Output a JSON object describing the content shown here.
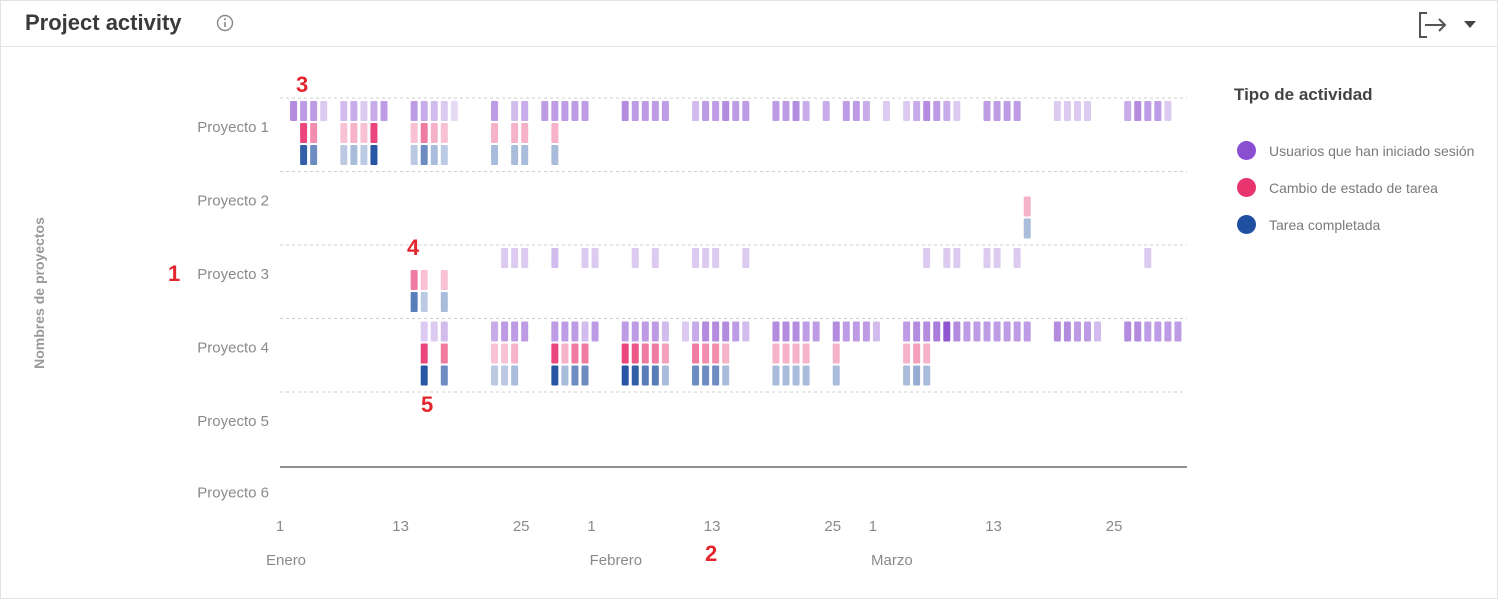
{
  "header": {
    "title": "Project activity"
  },
  "legend": {
    "title": "Tipo de actividad",
    "items": [
      {
        "label": "Usuarios que han iniciado sesión",
        "color": "#8a4fd0"
      },
      {
        "label": "Cambio de estado de tarea",
        "color": "#e8346f"
      },
      {
        "label": "Tarea completada",
        "color": "#1f4fa0"
      }
    ]
  },
  "markers": [
    "1",
    "2",
    "3",
    "4",
    "5"
  ],
  "chart_data": {
    "type": "heatmap",
    "ylabel": "Nombres de proyectos",
    "projects": [
      "Proyecto 1",
      "Proyecto 2",
      "Proyecto 3",
      "Proyecto 4",
      "Proyecto 5",
      "Proyecto 6"
    ],
    "x_ticks": [
      {
        "label": "1",
        "day": 1
      },
      {
        "label": "13",
        "day": 13
      },
      {
        "label": "25",
        "day": 25
      },
      {
        "label": "1",
        "day": 32
      },
      {
        "label": "13",
        "day": 44
      },
      {
        "label": "25",
        "day": 56
      },
      {
        "label": "1",
        "day": 60
      },
      {
        "label": "13",
        "day": 72
      },
      {
        "label": "25",
        "day": 84
      }
    ],
    "months": [
      {
        "label": "Enero",
        "day": 1
      },
      {
        "label": "Febrero",
        "day": 33
      },
      {
        "label": "Marzo",
        "day": 61
      }
    ],
    "day_range": [
      1,
      91
    ],
    "series": [
      {
        "name": "Usuarios que han iniciado sesión",
        "color": "#8a4fd0"
      },
      {
        "name": "Cambio de estado de tarea",
        "color": "#e8346f"
      },
      {
        "name": "Tarea completada",
        "color": "#1f4fa0"
      }
    ],
    "activity": [
      {
        "project": "Proyecto 1",
        "logins": {
          "2": 0.6,
          "3": 0.5,
          "4": 0.5,
          "5": 0.2,
          "7": 0.3,
          "8": 0.4,
          "9": 0.2,
          "10": 0.4,
          "11": 0.5,
          "14": 0.5,
          "15": 0.4,
          "16": 0.3,
          "17": 0.2,
          "18": 0.1,
          "22": 0.5,
          "24": 0.3,
          "25": 0.4,
          "27": 0.5,
          "28": 0.5,
          "29": 0.5,
          "30": 0.5,
          "31": 0.5,
          "35": 0.6,
          "36": 0.5,
          "37": 0.5,
          "38": 0.5,
          "39": 0.5,
          "42": 0.3,
          "43": 0.5,
          "44": 0.5,
          "45": 0.6,
          "46": 0.5,
          "47": 0.5,
          "50": 0.5,
          "51": 0.5,
          "52": 0.6,
          "53": 0.4,
          "55": 0.4,
          "57": 0.5,
          "58": 0.5,
          "59": 0.4,
          "61": 0.2,
          "63": 0.2,
          "64": 0.4,
          "65": 0.6,
          "66": 0.5,
          "67": 0.4,
          "68": 0.2,
          "71": 0.5,
          "72": 0.5,
          "73": 0.5,
          "74": 0.5,
          "78": 0.2,
          "79": 0.2,
          "80": 0.2,
          "81": 0.2,
          "85": 0.4,
          "86": 0.6,
          "87": 0.5,
          "88": 0.5,
          "89": 0.2
        },
        "status": {
          "3": 0.9,
          "4": 0.5,
          "7": 0.2,
          "8": 0.3,
          "9": 0.2,
          "10": 0.9,
          "14": 0.2,
          "15": 0.6,
          "16": 0.3,
          "17": 0.2,
          "22": 0.3,
          "24": 0.3,
          "25": 0.3,
          "28": 0.3
        },
        "completed": {
          "3": 0.9,
          "4": 0.6,
          "7": 0.2,
          "8": 0.3,
          "9": 0.2,
          "10": 0.95,
          "14": 0.2,
          "15": 0.6,
          "16": 0.3,
          "17": 0.2,
          "22": 0.3,
          "24": 0.3,
          "25": 0.3,
          "28": 0.3
        }
      },
      {
        "project": "Proyecto 2",
        "logins": {},
        "status": {
          "75": 0.3
        },
        "completed": {
          "75": 0.3
        }
      },
      {
        "project": "Proyecto 3",
        "logins": {
          "23": 0.2,
          "24": 0.2,
          "25": 0.2,
          "28": 0.3,
          "31": 0.2,
          "32": 0.2,
          "36": 0.2,
          "38": 0.2,
          "42": 0.2,
          "43": 0.2,
          "44": 0.2,
          "47": 0.2,
          "65": 0.2,
          "67": 0.2,
          "68": 0.2,
          "71": 0.2,
          "72": 0.2,
          "74": 0.2,
          "87": 0.2
        },
        "status": {
          "14": 0.6,
          "15": 0.2,
          "17": 0.2
        },
        "completed": {
          "14": 0.7,
          "15": 0.2,
          "17": 0.3
        }
      },
      {
        "project": "Proyecto 4",
        "logins": {
          "15": 0.2,
          "16": 0.2,
          "17": 0.3,
          "22": 0.4,
          "23": 0.5,
          "24": 0.5,
          "25": 0.5,
          "28": 0.5,
          "29": 0.5,
          "30": 0.5,
          "31": 0.3,
          "32": 0.5,
          "35": 0.5,
          "36": 0.5,
          "37": 0.5,
          "38": 0.5,
          "39": 0.3,
          "41": 0.2,
          "42": 0.4,
          "43": 0.6,
          "44": 0.6,
          "45": 0.6,
          "46": 0.5,
          "47": 0.3,
          "50": 0.6,
          "51": 0.6,
          "52": 0.6,
          "53": 0.5,
          "54": 0.5,
          "56": 0.6,
          "57": 0.5,
          "58": 0.5,
          "59": 0.5,
          "60": 0.3,
          "63": 0.5,
          "64": 0.6,
          "65": 0.6,
          "66": 0.7,
          "67": 0.95,
          "68": 0.6,
          "69": 0.5,
          "70": 0.5,
          "71": 0.5,
          "72": 0.5,
          "73": 0.5,
          "74": 0.5,
          "75": 0.5,
          "78": 0.6,
          "79": 0.6,
          "80": 0.5,
          "81": 0.5,
          "82": 0.3,
          "85": 0.6,
          "86": 0.6,
          "87": 0.5,
          "88": 0.5,
          "89": 0.5,
          "90": 0.5
        },
        "status": {
          "15": 0.9,
          "17": 0.6,
          "22": 0.2,
          "23": 0.2,
          "24": 0.3,
          "28": 0.9,
          "29": 0.3,
          "30": 0.6,
          "31": 0.6,
          "35": 0.9,
          "36": 0.8,
          "37": 0.6,
          "38": 0.6,
          "39": 0.4,
          "42": 0.6,
          "43": 0.5,
          "44": 0.5,
          "45": 0.3,
          "50": 0.3,
          "51": 0.3,
          "52": 0.3,
          "53": 0.3,
          "56": 0.3,
          "63": 0.3,
          "64": 0.4,
          "65": 0.3
        },
        "completed": {
          "15": 0.95,
          "17": 0.6,
          "22": 0.2,
          "23": 0.2,
          "24": 0.3,
          "28": 0.95,
          "29": 0.3,
          "30": 0.6,
          "31": 0.6,
          "35": 0.95,
          "36": 0.9,
          "37": 0.7,
          "38": 0.7,
          "39": 0.3,
          "42": 0.6,
          "43": 0.6,
          "44": 0.6,
          "45": 0.3,
          "50": 0.3,
          "51": 0.3,
          "52": 0.3,
          "53": 0.3,
          "56": 0.3,
          "63": 0.3,
          "64": 0.4,
          "65": 0.3
        }
      },
      {
        "project": "Proyecto 5",
        "logins": {},
        "status": {},
        "completed": {}
      },
      {
        "project": "Proyecto 6",
        "logins": {},
        "status": {},
        "completed": {}
      }
    ],
    "grid": true,
    "legend_position": "right"
  }
}
